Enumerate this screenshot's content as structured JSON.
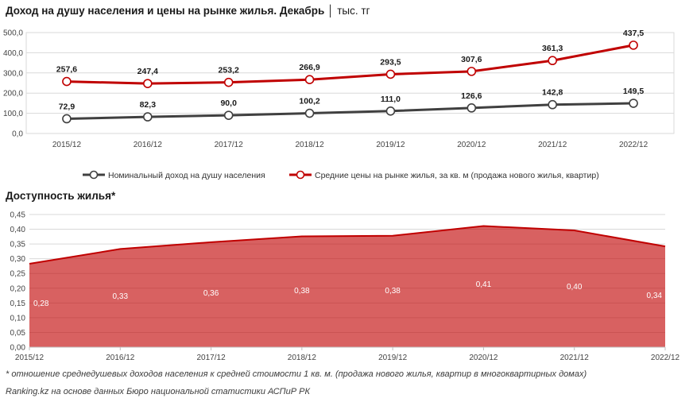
{
  "chart_data": [
    {
      "type": "line",
      "title": "Доход на душу населения и цены на рынке жилья. Декабрь",
      "unit": "тыс. тг",
      "categories": [
        "2015/12",
        "2016/12",
        "2017/12",
        "2018/12",
        "2019/12",
        "2020/12",
        "2021/12",
        "2022/12"
      ],
      "y_tick_labels": [
        "0,0",
        "100,0",
        "200,0",
        "300,0",
        "400,0",
        "500,0"
      ],
      "ylim": [
        0,
        500
      ],
      "grid": true,
      "legend_position": "bottom",
      "series": [
        {
          "name": "Номинальный доход на душу населения",
          "color": "#404040",
          "values": [
            72.9,
            82.3,
            90.0,
            100.2,
            111.0,
            126.6,
            142.8,
            149.5
          ],
          "labels": [
            "72,9",
            "82,3",
            "90,0",
            "100,2",
            "111,0",
            "126,6",
            "142,8",
            "149,5"
          ]
        },
        {
          "name": "Средние цены на рынке жилья, за кв. м (продажа нового жилья, квартир)",
          "color": "#c00000",
          "values": [
            257.6,
            247.4,
            253.2,
            266.9,
            293.5,
            307.6,
            361.3,
            437.5
          ],
          "labels": [
            "257,6",
            "247,4",
            "253,2",
            "266,9",
            "293,5",
            "307,6",
            "361,3",
            "437,5"
          ]
        }
      ]
    },
    {
      "type": "area",
      "title": "Доступность жилья*",
      "categories": [
        "2015/12",
        "2016/12",
        "2017/12",
        "2018/12",
        "2019/12",
        "2020/12",
        "2021/12",
        "2022/12"
      ],
      "y_tick_labels": [
        "0,00",
        "0,05",
        "0,10",
        "0,15",
        "0,20",
        "0,25",
        "0,30",
        "0,35",
        "0,40",
        "0,45"
      ],
      "ylim": [
        0,
        0.45
      ],
      "grid": true,
      "color": "#c00000",
      "values": [
        0.283,
        0.333,
        0.356,
        0.376,
        0.378,
        0.411,
        0.396,
        0.342
      ],
      "labels": [
        "0,28",
        "0,33",
        "0,36",
        "0,38",
        "0,38",
        "0,41",
        "0,40",
        "0,34"
      ]
    }
  ],
  "footnote": "* отношение среднедушевых доходов населения к средней стоимости 1 кв. м. (продажа нового жилья, квартир в многоквартирных домах)",
  "source": "Ranking.kz на основе данных Бюро национальной статистики АСПиР РК"
}
